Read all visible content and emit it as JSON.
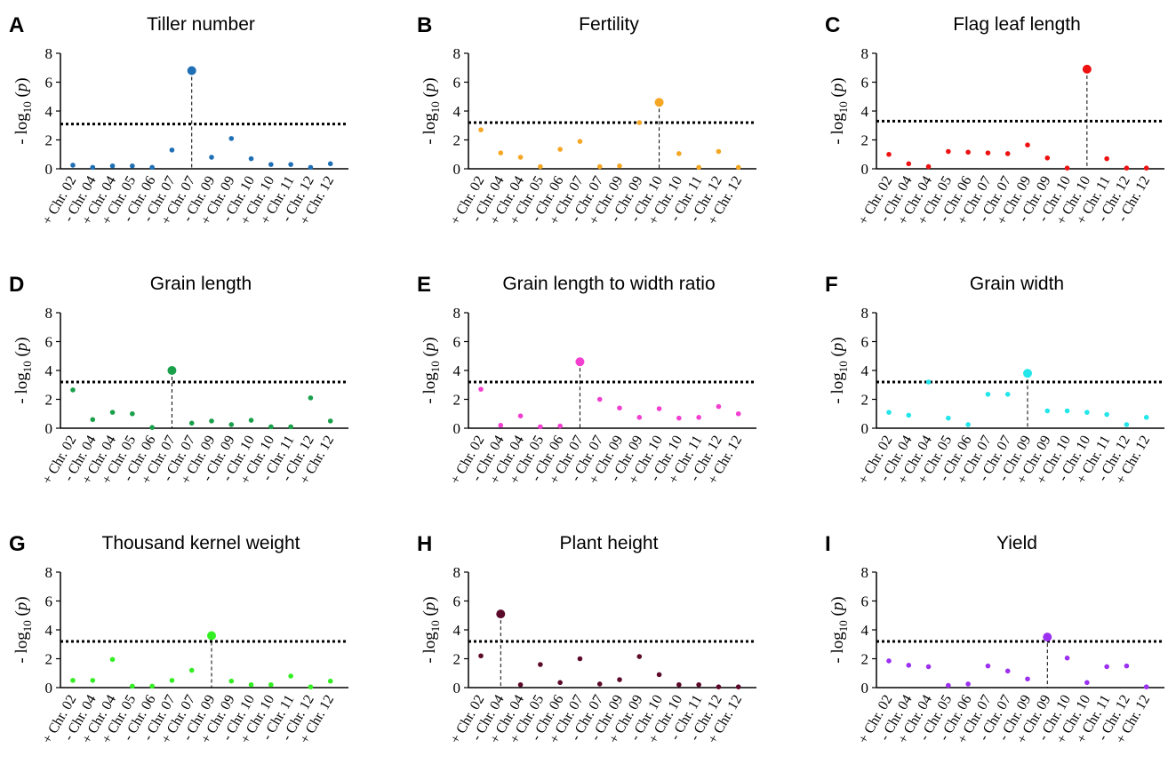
{
  "chart_data": [
    {
      "type": "scatter",
      "panel": "A",
      "title": "Tiller number",
      "ylabel": [
        "- log",
        "10",
        " (",
        "p",
        ")"
      ],
      "color": "#1f6fb5",
      "categories": [
        "+ Chr. 02",
        "- Chr. 04",
        "+ Chr. 04",
        "+ Chr. 05",
        "- Chr. 06",
        "- Chr. 07",
        "+ Chr. 07",
        "- Chr. 09",
        "+ Chr. 09",
        "- Chr. 10",
        "+ Chr. 10",
        "+ Chr. 11",
        "- Chr. 12",
        "+ Chr. 12"
      ],
      "values": [
        0.25,
        0.1,
        0.2,
        0.2,
        0.1,
        1.3,
        6.8,
        0.8,
        2.1,
        0.7,
        0.3,
        0.3,
        0.1,
        0.35
      ],
      "ylim": [
        0,
        8
      ],
      "yticks": [
        0,
        2,
        4,
        6,
        8
      ],
      "threshold": 3.1
    },
    {
      "type": "scatter",
      "panel": "B",
      "title": "Fertility",
      "ylabel": [
        "- log",
        "10",
        " (",
        "p",
        ")"
      ],
      "color": "#f5a623",
      "categories": [
        "+ Chr. 02",
        "- Chr. 04",
        "+ Chr. 04",
        "+ Chr. 05",
        "- Chr. 06",
        "+ Chr. 07",
        "- Chr. 07",
        "+ Chr. 09",
        "- Chr. 09",
        "- Chr. 10",
        "+ Chr. 10",
        "- Chr. 11",
        "- Chr. 12",
        "+ Chr. 12"
      ],
      "values": [
        2.7,
        1.1,
        0.8,
        0.15,
        1.35,
        1.9,
        0.15,
        0.2,
        3.2,
        4.6,
        1.05,
        0.1,
        1.2,
        0.1
      ],
      "ylim": [
        0,
        8
      ],
      "yticks": [
        0,
        2,
        4,
        6,
        8
      ],
      "threshold": 3.2
    },
    {
      "type": "scatter",
      "panel": "C",
      "title": "Flag leaf length",
      "ylabel": [
        "- log",
        "10",
        " (",
        "p",
        ")"
      ],
      "color": "#ee1111",
      "categories": [
        "+ Chr. 02",
        "- Chr. 04",
        "+ Chr. 04",
        "+ Chr. 05",
        "- Chr. 06",
        "+ Chr. 07",
        "- Chr. 07",
        "+ Chr. 09",
        "- Chr. 09",
        "- Chr. 10",
        "+ Chr. 10",
        "+ Chr. 11",
        "- Chr. 12",
        "- Chr. 12"
      ],
      "values": [
        1.0,
        0.35,
        0.15,
        1.2,
        1.15,
        1.1,
        1.05,
        1.65,
        0.75,
        0.05,
        6.9,
        0.7,
        0.05,
        0.05
      ],
      "ylim": [
        0,
        8
      ],
      "yticks": [
        0,
        2,
        4,
        6,
        8
      ],
      "threshold": 3.3
    },
    {
      "type": "scatter",
      "panel": "D",
      "title": "Grain length",
      "ylabel": [
        "- log",
        "10",
        " (",
        "p",
        ")"
      ],
      "color": "#1aa04a",
      "categories": [
        "+ Chr. 02",
        "- Chr. 04",
        "+ Chr. 04",
        "+ Chr. 05",
        "- Chr. 06",
        "+ Chr. 07",
        "- Chr. 07",
        "+ Chr. 09",
        "- Chr. 09",
        "- Chr. 10",
        "+ Chr. 10",
        "- Chr. 11",
        "- Chr. 12",
        "+ Chr. 12"
      ],
      "values": [
        2.65,
        0.6,
        1.1,
        1.0,
        0.05,
        4.0,
        0.35,
        0.5,
        0.25,
        0.55,
        0.1,
        0.1,
        2.1,
        0.5
      ],
      "ylim": [
        0,
        8
      ],
      "yticks": [
        0,
        2,
        4,
        6,
        8
      ],
      "threshold": 3.2
    },
    {
      "type": "scatter",
      "panel": "E",
      "title": "Grain length to width ratio",
      "ylabel": [
        "- log",
        "10",
        " (",
        "p",
        ")"
      ],
      "color": "#f23fd0",
      "categories": [
        "+ Chr. 02",
        "- Chr. 04",
        "+ Chr. 04",
        "+ Chr. 05",
        "- Chr. 06",
        "+ Chr. 07",
        "- Chr. 07",
        "+ Chr. 09",
        "- Chr. 09",
        "+ Chr. 10",
        "- Chr. 10",
        "+ Chr. 11",
        "- Chr. 12",
        "+ Chr. 12"
      ],
      "values": [
        2.7,
        0.2,
        0.85,
        0.1,
        0.15,
        4.6,
        2.0,
        1.4,
        0.75,
        1.35,
        0.7,
        0.75,
        1.5,
        1.0
      ],
      "ylim": [
        0,
        8
      ],
      "yticks": [
        0,
        2,
        4,
        6,
        8
      ],
      "threshold": 3.2
    },
    {
      "type": "scatter",
      "panel": "F",
      "title": "Grain width",
      "ylabel": [
        "- log",
        "10",
        " (",
        "p",
        ")"
      ],
      "color": "#22e6ea",
      "categories": [
        "+ Chr. 02",
        "- Chr. 04",
        "+ Chr. 04",
        "+ Chr. 05",
        "- Chr. 06",
        "+ Chr. 07",
        "- Chr. 07",
        "- Chr. 09",
        "+ Chr. 09",
        "+ Chr. 10",
        "- Chr. 10",
        "+ Chr. 11",
        "- Chr. 12",
        "+ Chr. 12"
      ],
      "values": [
        1.1,
        0.9,
        3.2,
        0.7,
        0.25,
        2.35,
        2.35,
        3.8,
        1.2,
        1.2,
        1.1,
        0.95,
        0.25,
        0.75
      ],
      "ylim": [
        0,
        8
      ],
      "yticks": [
        0,
        2,
        4,
        6,
        8
      ],
      "threshold": 3.2
    },
    {
      "type": "scatter",
      "panel": "G",
      "title": "Thousand kernel weight",
      "ylabel": [
        "- log",
        "10",
        " (",
        "p",
        ")"
      ],
      "color": "#33ee22",
      "categories": [
        "+ Chr. 02",
        "- Chr. 04",
        "+ Chr. 04",
        "+ Chr. 05",
        "- Chr. 06",
        "- Chr. 07",
        "+ Chr. 07",
        "- Chr. 09",
        "+ Chr. 09",
        "- Chr. 10",
        "+ Chr. 10",
        "- Chr. 11",
        "- Chr. 12",
        "+ Chr. 12"
      ],
      "values": [
        0.5,
        0.5,
        1.95,
        0.1,
        0.1,
        0.5,
        1.2,
        3.6,
        0.45,
        0.2,
        0.2,
        0.8,
        0.05,
        0.45
      ],
      "ylim": [
        0,
        8
      ],
      "yticks": [
        0,
        2,
        4,
        6,
        8
      ],
      "threshold": 3.2
    },
    {
      "type": "scatter",
      "panel": "H",
      "title": "Plant height",
      "ylabel": [
        "- log",
        "10",
        " (",
        "p",
        ")"
      ],
      "color": "#5c0a2a",
      "categories": [
        "+ Chr. 02",
        "- Chr. 04",
        "+ Chr. 04",
        "+ Chr. 05",
        "- Chr. 06",
        "+ Chr. 07",
        "- Chr. 07",
        "- Chr. 09",
        "+ Chr. 09",
        "- Chr. 10",
        "+ Chr. 10",
        "- Chr. 11",
        "- Chr. 12",
        "+ Chr. 12"
      ],
      "values": [
        2.2,
        5.1,
        0.2,
        1.6,
        0.35,
        2.0,
        0.25,
        0.55,
        2.15,
        0.9,
        0.2,
        0.2,
        0.05,
        0.05
      ],
      "ylim": [
        0,
        8
      ],
      "yticks": [
        0,
        2,
        4,
        6,
        8
      ],
      "threshold": 3.2
    },
    {
      "type": "scatter",
      "panel": "I",
      "title": "Yield",
      "ylabel": [
        "- log",
        "10",
        " (",
        "p",
        ")"
      ],
      "color": "#9b30f0",
      "categories": [
        "+ Chr. 02",
        "- Chr. 04",
        "+ Chr. 04",
        "- Chr. 05",
        "- Chr. 06",
        "+ Chr. 07",
        "- Chr. 07",
        "- Chr. 09",
        "+ Chr. 09",
        "- Chr. 10",
        "+ Chr. 10",
        "+ Chr. 11",
        "- Chr. 12",
        "+ Chr. 12"
      ],
      "values": [
        1.85,
        1.55,
        1.45,
        0.15,
        0.25,
        1.5,
        1.15,
        0.6,
        3.5,
        2.05,
        0.35,
        1.45,
        1.5,
        0.05
      ],
      "ylim": [
        0,
        8
      ],
      "yticks": [
        0,
        2,
        4,
        6,
        8
      ],
      "threshold": 3.2
    }
  ]
}
